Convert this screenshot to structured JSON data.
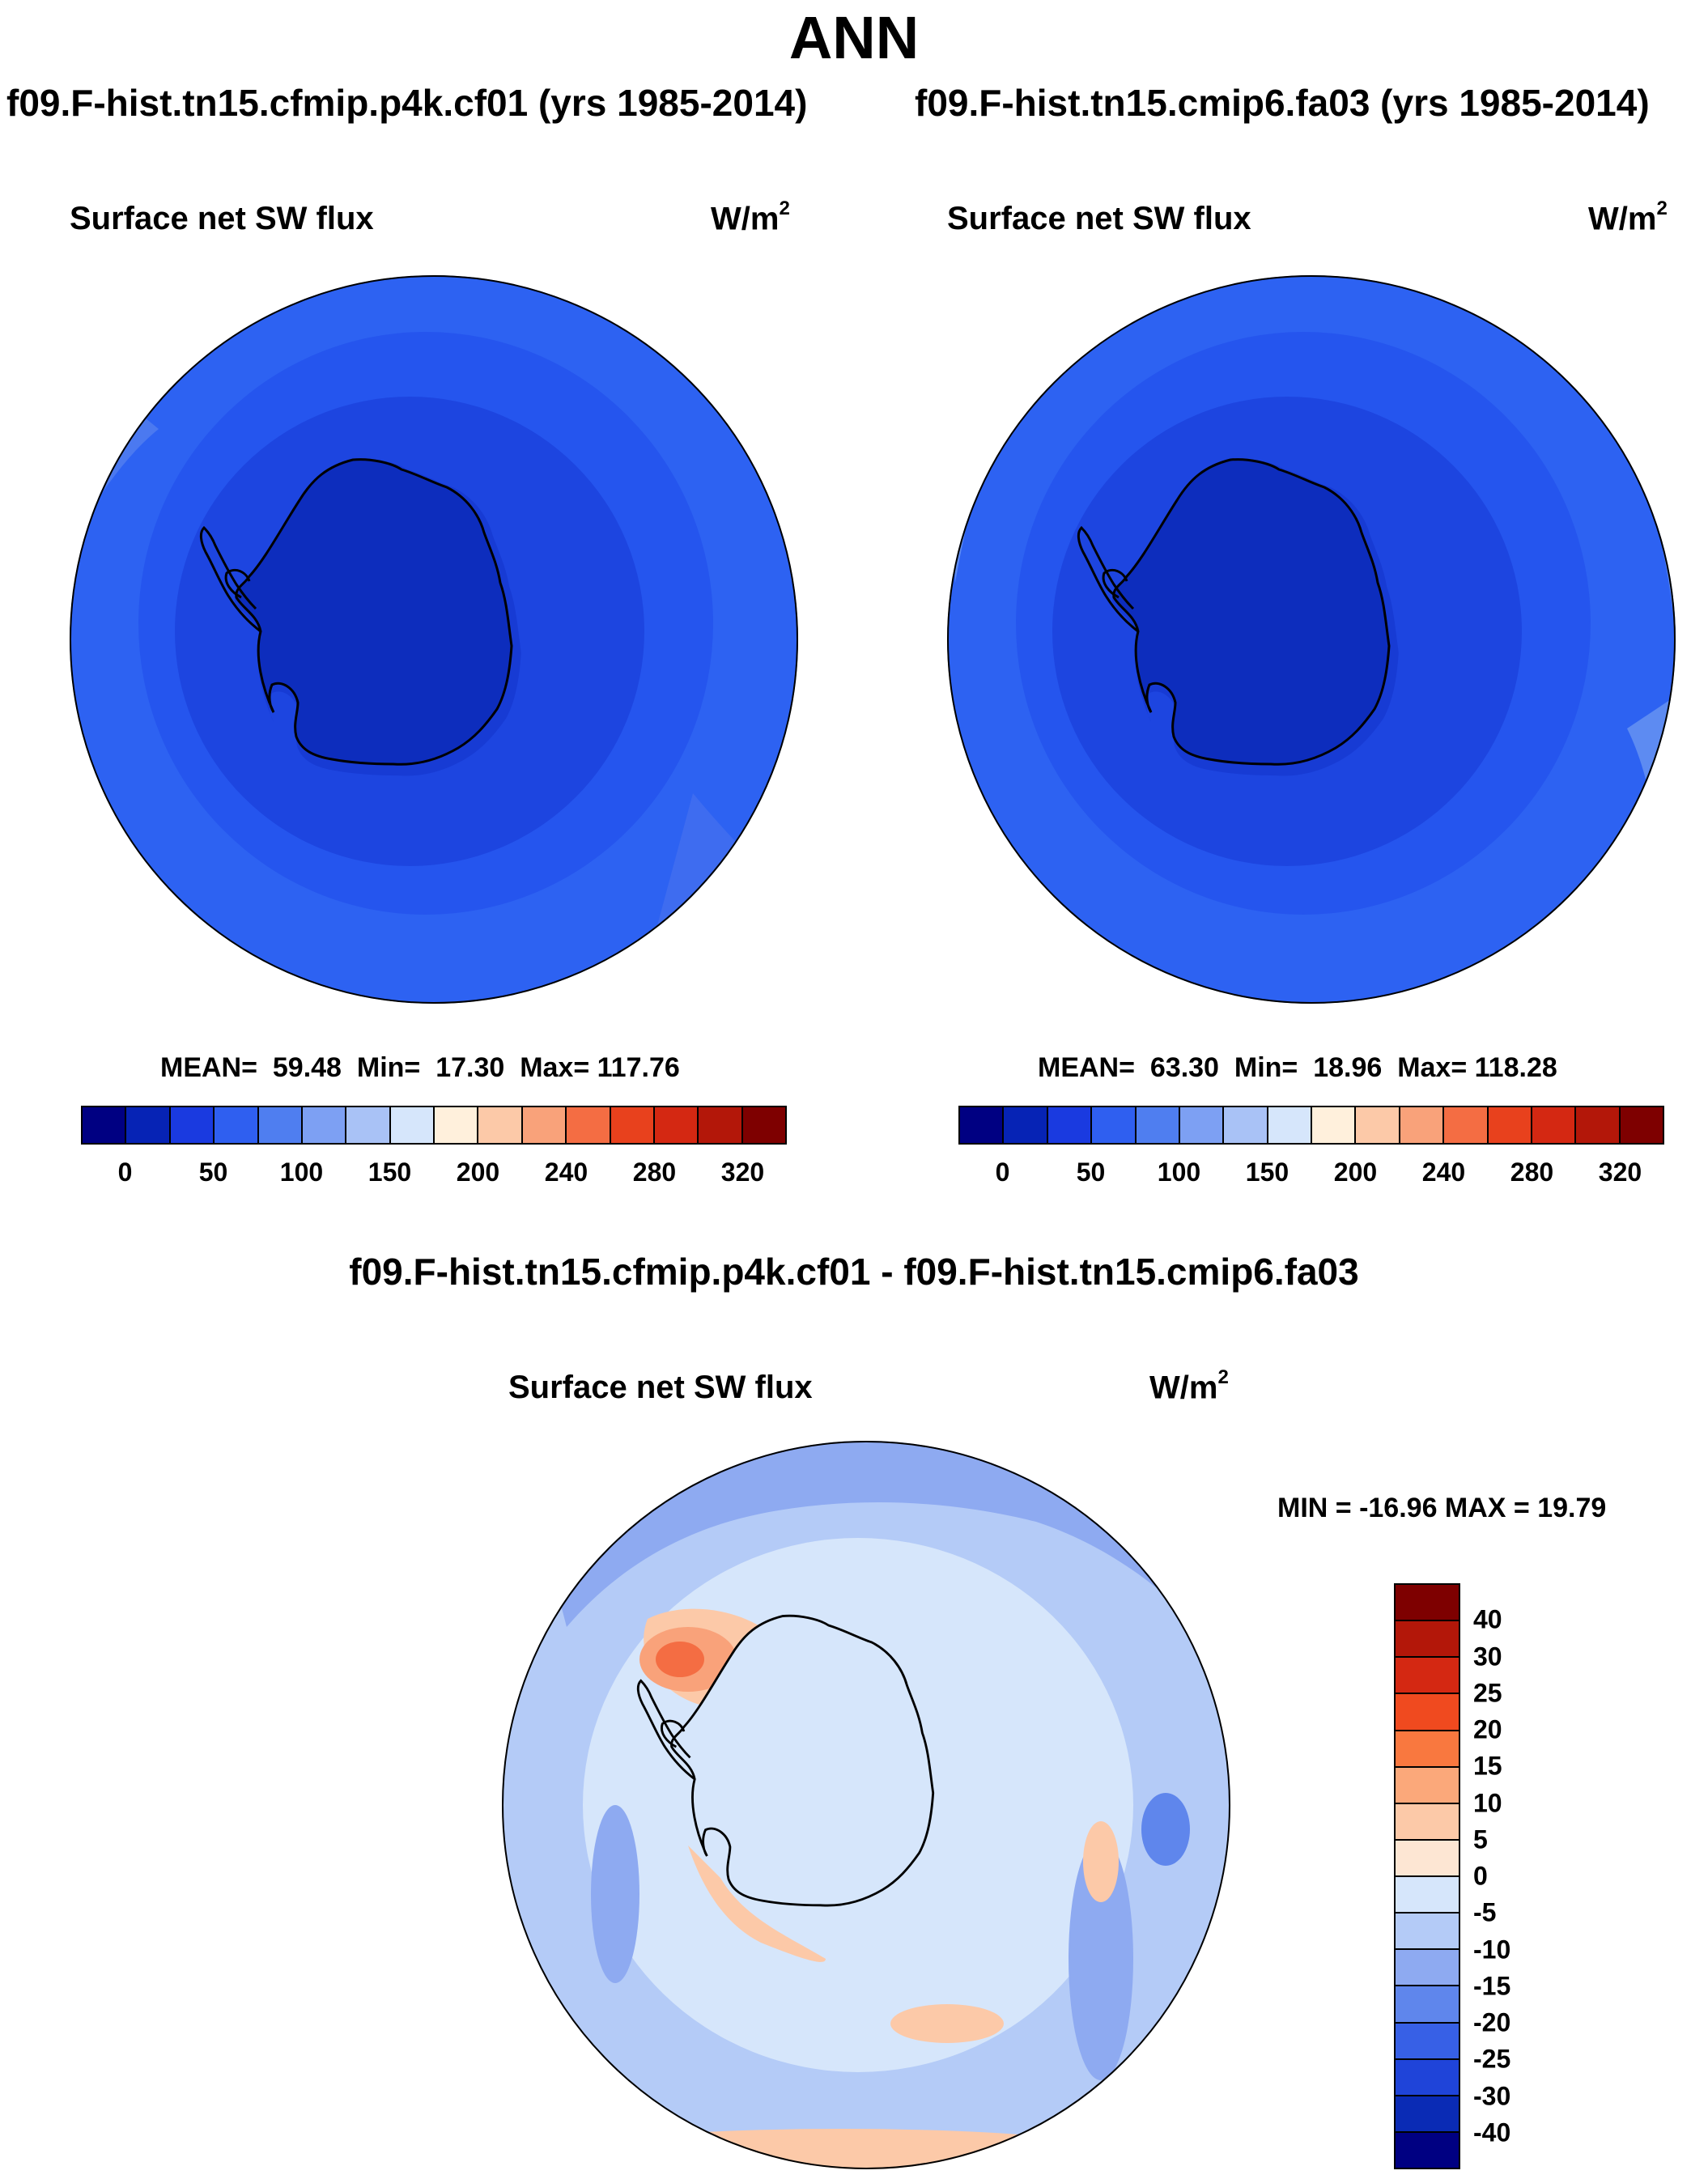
{
  "chart_data": [
    {
      "type": "heatmap",
      "projection": "south-polar-stereographic",
      "run_title": "f09.F-hist.tn15.cfmip.p4k.cf01 (yrs 1985-2014)",
      "title": "Surface net SW flux",
      "units": "W/m",
      "units_sup": "2",
      "stats": {
        "mean_label": "MEAN=",
        "mean": "59.48",
        "min_label": "Min=",
        "min": "17.30",
        "max_label": "Max=",
        "max": "117.76"
      },
      "levels": [
        0,
        50,
        100,
        150,
        200,
        240,
        280,
        320
      ],
      "tick_labels": [
        "0",
        "50",
        "100",
        "150",
        "200",
        "240",
        "280",
        "320"
      ],
      "value_range": [
        17.3,
        117.76
      ]
    },
    {
      "type": "heatmap",
      "projection": "south-polar-stereographic",
      "run_title": "f09.F-hist.tn15.cmip6.fa03 (yrs 1985-2014)",
      "title": "Surface net SW flux",
      "units": "W/m",
      "units_sup": "2",
      "stats": {
        "mean_label": "MEAN=",
        "mean": "63.30",
        "min_label": "Min=",
        "min": "18.96",
        "max_label": "Max=",
        "max": "118.28"
      },
      "levels": [
        0,
        50,
        100,
        150,
        200,
        240,
        280,
        320
      ],
      "tick_labels": [
        "0",
        "50",
        "100",
        "150",
        "200",
        "240",
        "280",
        "320"
      ],
      "value_range": [
        18.96,
        118.28
      ]
    },
    {
      "type": "heatmap",
      "projection": "south-polar-stereographic",
      "run_title": "f09.F-hist.tn15.cfmip.p4k.cf01 - f09.F-hist.tn15.cmip6.fa03",
      "title": "Surface net SW flux",
      "units": "W/m",
      "units_sup": "2",
      "stats": {
        "label": "MIN = -16.96 MAX =  19.79",
        "min": -16.96,
        "max": 19.79
      },
      "levels": [
        40,
        30,
        25,
        20,
        15,
        10,
        5,
        0,
        -5,
        -10,
        -15,
        -20,
        -25,
        -30,
        -40
      ],
      "tick_labels": [
        "40",
        "30",
        "25",
        "20",
        "15",
        "10",
        "5",
        "0",
        "-5",
        "-10",
        "-15",
        "-20",
        "-25",
        "-30",
        "-40"
      ],
      "value_range": [
        -16.96,
        19.79
      ]
    }
  ],
  "page": {
    "title": "ANN"
  },
  "colors": {
    "seq_palette": [
      "#000082",
      "#0623b5",
      "#1a3ae0",
      "#2f5ff0",
      "#4f7ef0",
      "#7da0f3",
      "#a9c2f6",
      "#d6e6fb",
      "#fff0dc",
      "#fcc9a8",
      "#f9a27a",
      "#f46d43",
      "#e8411d",
      "#d42812",
      "#b31709",
      "#7e0000"
    ],
    "div_palette": [
      "#7e0000",
      "#b31709",
      "#d42812",
      "#f04a1f",
      "#f9783f",
      "#fba87a",
      "#fcc9a8",
      "#fde6d3",
      "#d6e6fb",
      "#b4cbf7",
      "#8eaaf1",
      "#5f86ec",
      "#3760e6",
      "#1f44d9",
      "#0a2bb5",
      "#000082"
    ],
    "map": {
      "ocean_lat": "#2d62f2",
      "ocean_mid": "#2555ee",
      "ocean_in": "#1d45e0",
      "land_shelf": "#173bd4",
      "land": "#0d2dbd",
      "diff_bg": "#d6e6fb",
      "diff_ring": "#b4cbf7",
      "diff_outer": "#8eaaf1",
      "diff_pos": "#fcc9a8",
      "diff_pos2": "#f9a27a",
      "diff_pos3": "#f46d43",
      "diff_neg": "#5f86ec"
    }
  }
}
